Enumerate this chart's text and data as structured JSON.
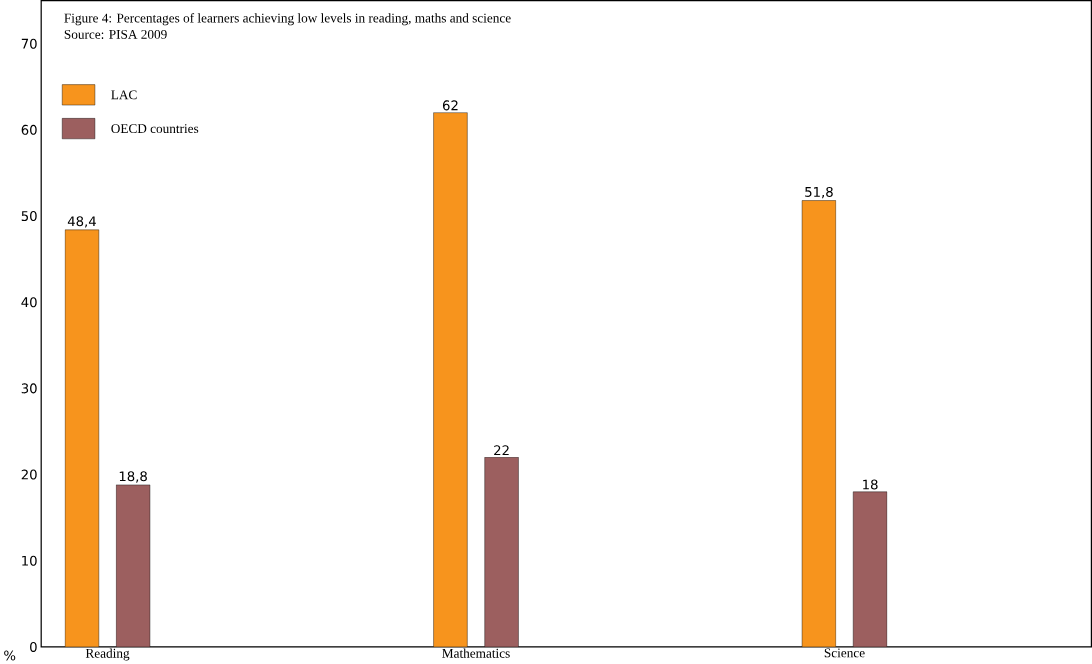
{
  "chart_data": {
    "type": "bar",
    "title": "Figure 4: Percentages of learners achieving low levels in reading, maths and science",
    "subtitle": "Source: PISA 2009",
    "ylabel": "%",
    "categories": [
      "Reading",
      "Mathematics",
      "Science"
    ],
    "series": [
      {
        "name": "LAC",
        "color": "#f7941d",
        "values": [
          48.4,
          62,
          51.8
        ],
        "value_labels": [
          "48,4",
          "62",
          "51,8"
        ]
      },
      {
        "name": "OECD countries",
        "color": "#9c5f5f",
        "values": [
          18.8,
          22,
          18
        ],
        "value_labels": [
          "18,8",
          "22",
          "18"
        ]
      }
    ],
    "ylim": [
      0,
      75
    ],
    "yticks": [
      0,
      10,
      20,
      30,
      40,
      50,
      60,
      70
    ],
    "legend": "top left"
  }
}
